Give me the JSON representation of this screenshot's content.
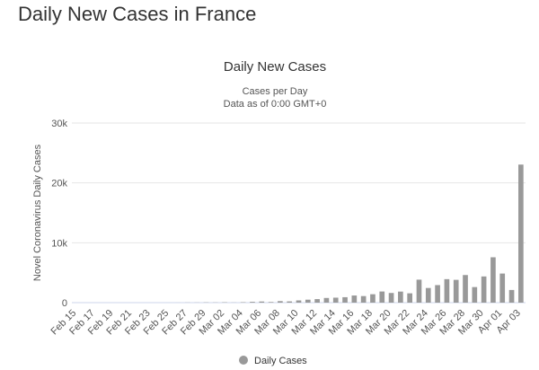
{
  "page": {
    "title": "Daily New Cases in France"
  },
  "chart_data": {
    "type": "bar",
    "title": "Daily New Cases",
    "subtitle_lines": [
      "Cases per Day",
      "Data as of 0:00 GMT+0"
    ],
    "ylabel": "Novel Coronavirus Daily Cases",
    "xlabel": "",
    "ylim": [
      0,
      30000
    ],
    "y_ticks": [
      0,
      10000,
      20000,
      30000
    ],
    "y_tick_labels": [
      "0",
      "10k",
      "20k",
      "30k"
    ],
    "grid": true,
    "legend_position": "bottom-center",
    "colors": {
      "bar": "#999999",
      "grid": "#e6e6e6",
      "axis": "#ccd6eb"
    },
    "categories": [
      "Feb 15",
      "Feb 16",
      "Feb 17",
      "Feb 18",
      "Feb 19",
      "Feb 20",
      "Feb 21",
      "Feb 22",
      "Feb 23",
      "Feb 24",
      "Feb 25",
      "Feb 26",
      "Feb 27",
      "Feb 28",
      "Feb 29",
      "Mar 01",
      "Mar 02",
      "Mar 03",
      "Mar 04",
      "Mar 05",
      "Mar 06",
      "Mar 07",
      "Mar 08",
      "Mar 09",
      "Mar 10",
      "Mar 11",
      "Mar 12",
      "Mar 13",
      "Mar 14",
      "Mar 15",
      "Mar 16",
      "Mar 17",
      "Mar 18",
      "Mar 19",
      "Mar 20",
      "Mar 21",
      "Mar 22",
      "Mar 23",
      "Mar 24",
      "Mar 25",
      "Mar 26",
      "Mar 27",
      "Mar 28",
      "Mar 29",
      "Mar 30",
      "Mar 31",
      "Apr 01",
      "Apr 02",
      "Apr 03"
    ],
    "x_tick_labels": [
      "Feb 15",
      "Feb 17",
      "Feb 19",
      "Feb 21",
      "Feb 23",
      "Feb 25",
      "Feb 27",
      "Feb 29",
      "Mar 02",
      "Mar 04",
      "Mar 06",
      "Mar 08",
      "Mar 10",
      "Mar 12",
      "Mar 14",
      "Mar 16",
      "Mar 18",
      "Mar 20",
      "Mar 22",
      "Mar 24",
      "Mar 26",
      "Mar 28",
      "Mar 30",
      "Apr 01",
      "Apr 03"
    ],
    "series": [
      {
        "name": "Daily Cases",
        "values": [
          0,
          0,
          0,
          0,
          0,
          0,
          0,
          0,
          0,
          0,
          2,
          4,
          20,
          19,
          43,
          30,
          61,
          21,
          73,
          138,
          190,
          103,
          253,
          210,
          372,
          495,
          591,
          780,
          829,
          911,
          1193,
          1097,
          1404,
          1861,
          1617,
          1847,
          1559,
          3838,
          2446,
          2931,
          3922,
          3809,
          4611,
          2599,
          4376,
          7578,
          4861,
          2116,
          23060
        ]
      }
    ]
  }
}
